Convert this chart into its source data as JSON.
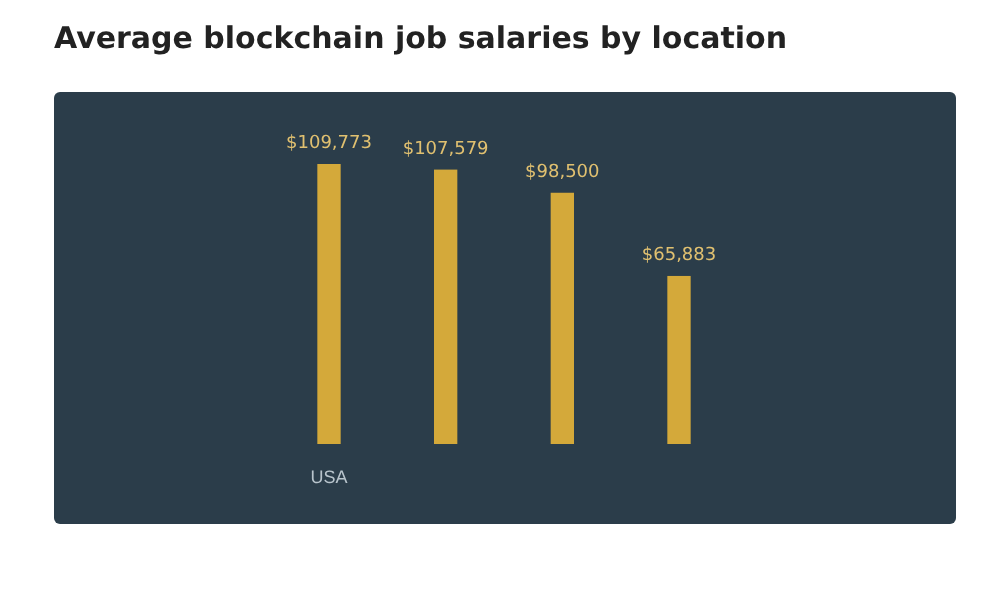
{
  "chart_data": {
    "type": "bar",
    "title": "Average blockchain job salaries by location",
    "categories": [
      "USA",
      null,
      null,
      null
    ],
    "values": [
      109773,
      107579,
      98500,
      65883
    ],
    "value_labels": [
      "$109,773",
      "$107,579",
      "$98,500",
      "$65,883"
    ],
    "color": "#d4a93a"
  }
}
